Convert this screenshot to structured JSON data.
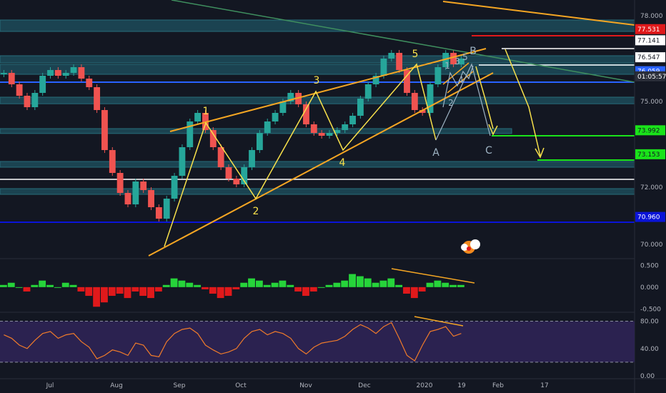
{
  "chart_data": [
    {
      "id": "price",
      "type": "line",
      "title": "",
      "y_ticks": [
        70.0,
        72.0,
        73.153,
        73.992,
        75.0,
        76.059,
        76.547,
        77.141,
        77.531,
        78.0
      ],
      "ylim": [
        69.55,
        78.55
      ],
      "price_labels": [
        {
          "value": 77.531,
          "text": "77.531",
          "bg": "#e0191b",
          "fg": "#ffffff"
        },
        {
          "value": 77.141,
          "text": "77.141",
          "bg": "#ffffff",
          "fg": "#131722"
        },
        {
          "value": 76.547,
          "text": "76.547",
          "bg": "#ffffff",
          "fg": "#131722"
        },
        {
          "value": 76.059,
          "text": "76.059",
          "bg": "#2962ff",
          "fg": "#ffffff"
        },
        {
          "value": 75.88,
          "text": "01:05:57",
          "bg": "#2a2e39",
          "fg": "#ffffff"
        },
        {
          "value": 73.992,
          "text": "73.992",
          "bg": "#1ae31a",
          "fg": "#131722"
        },
        {
          "value": 73.153,
          "text": "73.153",
          "bg": "#1ae31a",
          "fg": "#131722"
        },
        {
          "value": 70.96,
          "text": "70.960",
          "bg": "#0a14d8",
          "fg": "#ffffff"
        }
      ],
      "axis_ticks": [
        {
          "value": 78.0,
          "text": "78.000"
        },
        {
          "value": 75.0,
          "text": "75.000"
        },
        {
          "value": 72.0,
          "text": "72.000"
        },
        {
          "value": 70.0,
          "text": "70.000"
        }
      ],
      "x_ticks": [
        "Jul",
        "Aug",
        "Sep",
        "Oct",
        "Nov",
        "Dec",
        "2020",
        "19",
        "Feb",
        "17"
      ],
      "zones": [
        {
          "y_top": 77.85,
          "y_bot": 77.45
        },
        {
          "y_top": 76.6,
          "y_bot": 76.35
        },
        {
          "y_top": 76.3,
          "y_bot": 75.95
        },
        {
          "y_top": 75.15,
          "y_bot": 74.92
        },
        {
          "y_top": 74.05,
          "y_bot": 73.88
        },
        {
          "y_top": 72.9,
          "y_bot": 72.7
        },
        {
          "y_top": 71.95,
          "y_bot": 71.75
        }
      ],
      "wave_labels": [
        "1",
        "2",
        "3",
        "4",
        "5",
        "A",
        "B",
        "C",
        "1",
        "2",
        "3",
        "4",
        "5"
      ],
      "series": [
        {
          "values": [
            76.0,
            75.6,
            75.2,
            74.8,
            75.3,
            75.9,
            76.1,
            75.9,
            76.0,
            76.2,
            75.8,
            75.5,
            74.7,
            73.3,
            72.5,
            71.8,
            71.4,
            72.2,
            71.9,
            71.3,
            70.9,
            71.6,
            72.4,
            73.4,
            74.3,
            74.6,
            74.0,
            73.4,
            72.7,
            72.3,
            72.1,
            72.7,
            73.3,
            73.9,
            74.3,
            74.6,
            75.0,
            75.3,
            74.9,
            74.2,
            73.9,
            73.8,
            73.9,
            74.0,
            74.2,
            74.5,
            75.1,
            75.6,
            75.9,
            76.5,
            76.7,
            76.1,
            75.3,
            74.7,
            74.6,
            75.6,
            76.2,
            76.7,
            76.3,
            76.5
          ]
        },
        {
          "values": [
            0.05,
            0.1,
            0.0,
            -0.1,
            0.05,
            0.15,
            0.05,
            0.0,
            0.1,
            0.05,
            -0.1,
            -0.2,
            -0.45,
            -0.35,
            -0.2,
            -0.15,
            -0.25,
            -0.1,
            -0.2,
            -0.25,
            -0.1,
            0.05,
            0.2,
            0.15,
            0.1,
            0.05,
            -0.05,
            -0.15,
            -0.25,
            -0.2,
            -0.05,
            0.1,
            0.2,
            0.15,
            0.05,
            0.1,
            0.15,
            0.05,
            -0.1,
            -0.2,
            -0.1,
            0.0,
            0.05,
            0.1,
            0.15,
            0.3,
            0.25,
            0.2,
            0.1,
            0.15,
            0.2,
            0.05,
            -0.15,
            -0.25,
            -0.1,
            0.1,
            0.15,
            0.1,
            0.05,
            0.05
          ]
        },
        {
          "values": [
            60,
            55,
            45,
            40,
            52,
            62,
            65,
            55,
            60,
            62,
            50,
            42,
            25,
            30,
            38,
            35,
            30,
            48,
            45,
            30,
            28,
            50,
            62,
            68,
            70,
            62,
            45,
            38,
            32,
            35,
            40,
            55,
            65,
            68,
            60,
            65,
            62,
            55,
            40,
            32,
            42,
            48,
            50,
            52,
            58,
            68,
            75,
            70,
            62,
            72,
            78,
            55,
            30,
            22,
            45,
            65,
            68,
            72,
            58,
            62
          ]
        }
      ]
    },
    {
      "id": "oscillator",
      "type": "bar",
      "ticks": [
        {
          "value": 0.5,
          "text": "0.500"
        },
        {
          "value": 0.0,
          "text": "0.000"
        },
        {
          "value": -0.5,
          "text": "-0.500"
        }
      ],
      "ylim": [
        -0.56,
        0.62
      ]
    },
    {
      "id": "rsi",
      "type": "line",
      "ticks": [
        {
          "value": 80,
          "text": "80.00"
        },
        {
          "value": 40,
          "text": "40.00"
        },
        {
          "value": 0,
          "text": "0.00"
        }
      ],
      "bands": [
        20,
        80
      ],
      "ylim": [
        -2,
        92
      ]
    }
  ],
  "colors": {
    "background": "#131722",
    "zone": "#1d4b5a",
    "zone_border": "#2b7b8a",
    "trendline_orange": "#f5a623",
    "wave_yellow": "#f7e04b",
    "wave_grey": "#9fb4c4",
    "green": "#26d43a",
    "red": "#e0191b",
    "blue": "#2962ff",
    "rsi_line": "#f07b2a",
    "rsi_band": "#2b2250"
  },
  "logo_icon": "tradingview-cloud-icon"
}
